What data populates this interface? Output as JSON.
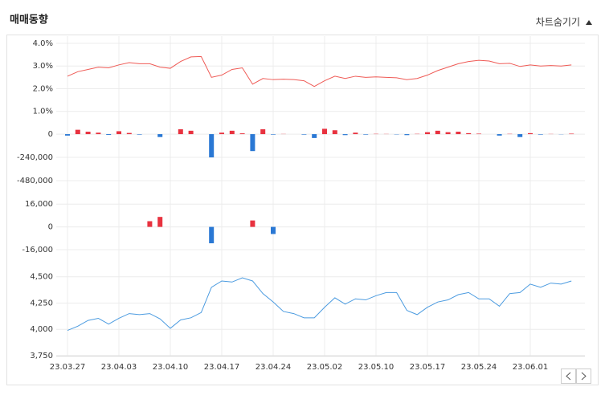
{
  "header": {
    "title": "매매동향",
    "toggle": "차트숨기기"
  },
  "chart_data": [
    {
      "type": "line",
      "color": "#ef5a55",
      "grid": true,
      "ylim": [
        0,
        4.3
      ],
      "yticks": [
        {
          "value": 4,
          "label": "4.0%"
        },
        {
          "value": 3,
          "label": "3.0%"
        },
        {
          "value": 2,
          "label": "2.0%"
        },
        {
          "value": 1,
          "label": "1.0%"
        }
      ],
      "values": [
        2.55,
        2.75,
        2.85,
        2.95,
        2.92,
        3.05,
        3.15,
        3.1,
        3.1,
        2.95,
        2.9,
        3.2,
        3.4,
        3.42,
        2.5,
        2.6,
        2.85,
        2.92,
        2.2,
        2.45,
        2.4,
        2.42,
        2.4,
        2.35,
        2.1,
        2.35,
        2.55,
        2.45,
        2.55,
        2.5,
        2.52,
        2.5,
        2.48,
        2.4,
        2.45,
        2.6,
        2.8,
        2.95,
        3.1,
        3.2,
        3.25,
        3.22,
        3.1,
        3.12,
        2.98,
        3.05,
        3.0,
        3.02,
        3.0,
        3.05
      ]
    },
    {
      "type": "bar",
      "colors": {
        "up": "#e8323f",
        "down": "#2a78d4"
      },
      "grid": true,
      "ylim": [
        -480000,
        100000
      ],
      "yticks": [
        0,
        {
          "value": -240000,
          "label": "-240,000"
        },
        {
          "value": -480000,
          "label": "-480,000"
        }
      ],
      "values": [
        -15000,
        45000,
        25000,
        15000,
        -8000,
        30000,
        12000,
        -5000,
        0,
        -30000,
        0,
        50000,
        35000,
        0,
        -240000,
        15000,
        35000,
        8000,
        -175000,
        50000,
        -5000,
        2000,
        0,
        -5000,
        -40000,
        55000,
        40000,
        -10000,
        15000,
        -5000,
        3000,
        2000,
        -3000,
        -10000,
        3000,
        20000,
        35000,
        20000,
        25000,
        10000,
        5000,
        0,
        -15000,
        3000,
        -30000,
        10000,
        -5000,
        2000,
        -2000,
        5000
      ]
    },
    {
      "type": "bar",
      "colors": {
        "up": "#e8323f",
        "down": "#2a78d4"
      },
      "grid": true,
      "ylim": [
        -16000,
        24000
      ],
      "yticks": [
        {
          "value": 16000,
          "label": "16,000"
        },
        0,
        {
          "value": -16000,
          "label": "-16,000"
        }
      ],
      "values": [
        0,
        0,
        0,
        0,
        0,
        0,
        0,
        0,
        4000,
        7000,
        0,
        0,
        0,
        0,
        -11500,
        0,
        0,
        0,
        4500,
        0,
        -5000,
        0,
        0,
        0,
        0,
        0,
        0,
        0,
        0,
        0,
        0,
        0,
        0,
        0,
        0,
        0,
        0,
        0,
        0,
        0,
        0,
        0,
        0,
        0,
        0,
        0,
        0,
        0,
        0,
        0
      ]
    },
    {
      "type": "line",
      "color": "#4b9be0",
      "grid": true,
      "ylim": [
        3750,
        4620
      ],
      "yticks": [
        {
          "value": 4500,
          "label": "4,500"
        },
        {
          "value": 4250,
          "label": "4,250"
        },
        {
          "value": 4000,
          "label": "4,000"
        },
        {
          "value": 3750,
          "label": "3,750"
        }
      ],
      "categories": [
        "23.03.27",
        null,
        null,
        null,
        null,
        "23.04.03",
        null,
        null,
        null,
        null,
        "23.04.10",
        null,
        null,
        null,
        null,
        "23.04.17",
        null,
        null,
        null,
        null,
        "23.04.24",
        null,
        null,
        null,
        null,
        "23.05.02",
        null,
        null,
        null,
        null,
        "23.05.10",
        null,
        null,
        null,
        null,
        "23.05.17",
        null,
        null,
        null,
        null,
        "23.05.24",
        null,
        null,
        null,
        null,
        "23.06.01",
        null,
        null,
        null,
        null
      ],
      "values": [
        3990,
        4030,
        4085,
        4105,
        4050,
        4105,
        4150,
        4140,
        4150,
        4100,
        4010,
        4090,
        4110,
        4160,
        4400,
        4460,
        4450,
        4490,
        4460,
        4340,
        4260,
        4170,
        4150,
        4110,
        4110,
        4210,
        4300,
        4240,
        4290,
        4280,
        4320,
        4350,
        4350,
        4180,
        4140,
        4210,
        4260,
        4280,
        4330,
        4350,
        4290,
        4290,
        4220,
        4340,
        4350,
        4430,
        4400,
        4440,
        4430,
        4460
      ]
    }
  ]
}
